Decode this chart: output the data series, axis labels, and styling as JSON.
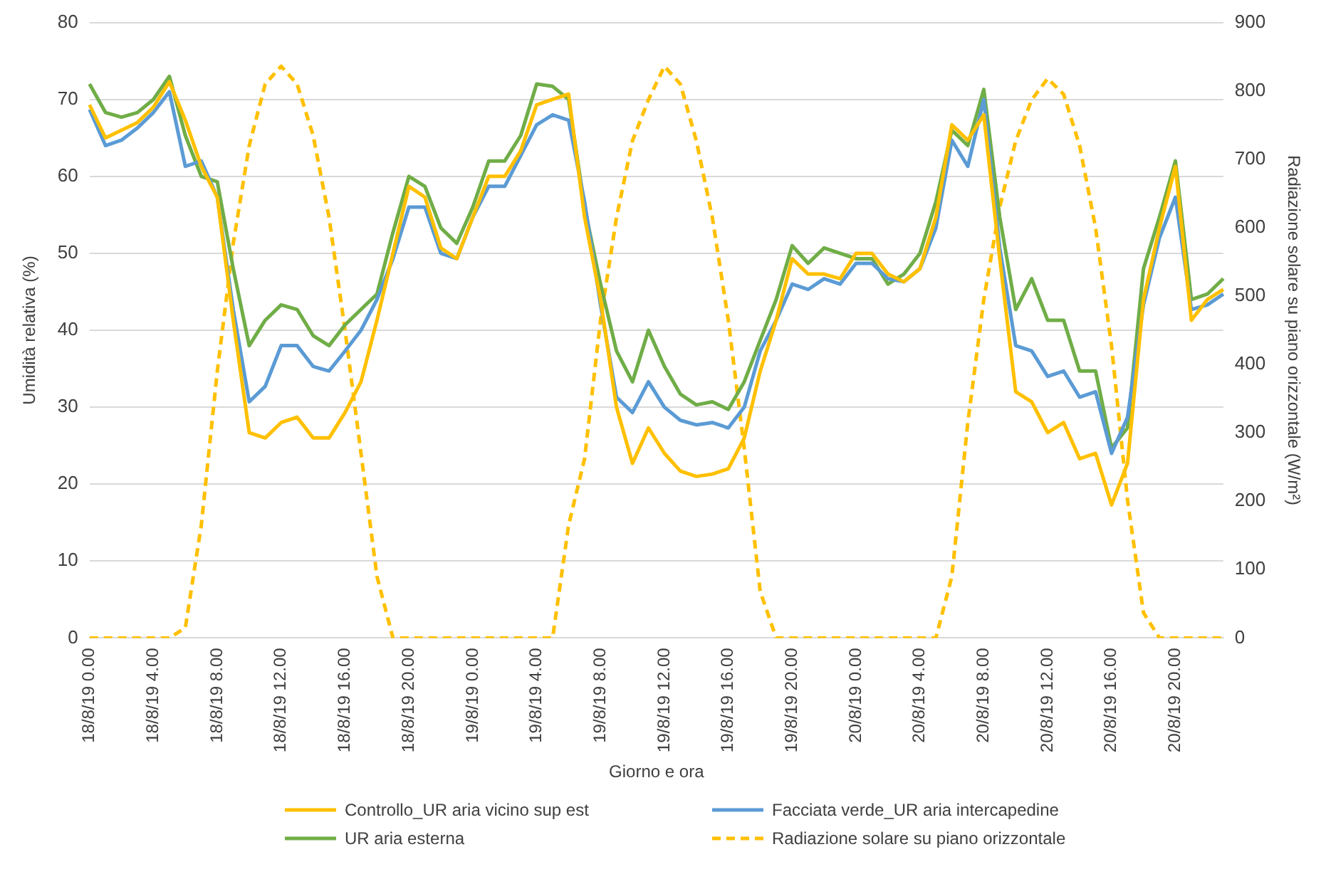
{
  "chart_data": {
    "type": "line",
    "xlabel": "Giorno e ora",
    "ylabel": "Umidità relativa (%)",
    "y2label": "Radiazione solare su piano orizzontale (W/m²)",
    "categories": [
      "18/8/19 0.00",
      null,
      null,
      null,
      "18/8/19 4.00",
      null,
      null,
      null,
      "18/8/19 8.00",
      null,
      null,
      null,
      "18/8/19 12.00",
      null,
      null,
      null,
      "18/8/19 16.00",
      null,
      null,
      null,
      "18/8/19 20.00",
      null,
      null,
      null,
      "19/8/19 0.00",
      null,
      null,
      null,
      "19/8/19 4.00",
      null,
      null,
      null,
      "19/8/19 8.00",
      null,
      null,
      null,
      "19/8/19 12.00",
      null,
      null,
      null,
      "19/8/19 16.00",
      null,
      null,
      null,
      "19/8/19 20.00",
      null,
      null,
      null,
      "20/8/19 0.00",
      null,
      null,
      null,
      "20/8/19 4.00",
      null,
      null,
      null,
      "20/8/19 8.00",
      null,
      null,
      null,
      "20/8/19 12.00",
      null,
      null,
      null,
      "20/8/19 16.00",
      null,
      null,
      null,
      "20/8/19 20.00",
      null,
      null,
      null
    ],
    "series": [
      {
        "name": "Controllo_UR aria vicino sup est",
        "color": "#ffc000",
        "values": [
          69.3,
          65,
          66,
          67,
          69,
          72.3,
          67.3,
          61.3,
          57.3,
          41.3,
          26.7,
          26,
          28,
          28.7,
          26,
          26,
          29.3,
          33.3,
          41.3,
          50,
          58.7,
          57.3,
          50.7,
          49.3,
          54.7,
          60,
          60,
          63.3,
          69.3,
          70,
          70.7,
          54.7,
          44,
          30,
          22.7,
          27.3,
          24,
          21.7,
          21,
          21.3,
          22,
          26,
          34.7,
          41.3,
          49.3,
          47.3,
          47.3,
          46.7,
          50,
          50,
          47.3,
          46.3,
          48,
          54.7,
          66.7,
          64.7,
          68,
          49.3,
          32,
          30.7,
          26.7,
          28,
          23.3,
          24,
          17.3,
          22.7,
          44,
          53.3,
          61.3,
          41.3,
          44,
          45.3
        ]
      },
      {
        "name": "Facciata verde_UR aria intercapedine",
        "color": "#5b9bd5",
        "values": [
          68.7,
          64,
          64.7,
          66.3,
          68.3,
          71,
          61.3,
          62,
          57.3,
          42.7,
          30.7,
          32.7,
          38,
          38,
          35.3,
          34.7,
          37.3,
          40,
          44,
          49.3,
          56,
          56,
          50,
          49.3,
          54.7,
          58.7,
          58.7,
          62.7,
          66.7,
          68,
          67.3,
          56.7,
          43.3,
          31.3,
          29.3,
          33.3,
          30,
          28.3,
          27.7,
          28,
          27.3,
          30,
          37.3,
          41.3,
          46,
          45.3,
          46.7,
          46,
          48.7,
          48.7,
          46.7,
          46.3,
          48,
          53.3,
          64.7,
          61.3,
          70,
          50.7,
          38,
          37.3,
          34,
          34.7,
          31.3,
          32,
          24,
          28.7,
          43.3,
          52,
          57.3,
          42.7,
          43.3,
          44.7
        ]
      },
      {
        "name": "UR aria esterna",
        "color": "#70ad47",
        "values": [
          72,
          68.3,
          67.7,
          68.3,
          70,
          73,
          65.3,
          60,
          59.3,
          48,
          38,
          41.3,
          43.3,
          42.7,
          39.3,
          38,
          40.7,
          42.7,
          44.7,
          52.7,
          60,
          58.7,
          53.3,
          51.3,
          56,
          62,
          62,
          65.3,
          72,
          71.7,
          70,
          56,
          46,
          37.3,
          33.3,
          40,
          35.3,
          31.7,
          30.3,
          30.7,
          29.7,
          33.3,
          38.7,
          44,
          51,
          48.7,
          50.7,
          50,
          49.3,
          49.3,
          46,
          47.3,
          50,
          56.7,
          66,
          64,
          71.3,
          54.7,
          42.7,
          46.7,
          41.3,
          41.3,
          34.7,
          34.7,
          24.7,
          27.3,
          48,
          54.7,
          62,
          44,
          44.7,
          46.7
        ]
      },
      {
        "name": "Radiazione solare su piano orizzontale",
        "color": "#ffc000",
        "axis": "y2",
        "line_style": "dashed",
        "values": [
          0,
          0,
          0,
          0,
          0,
          0,
          15,
          165,
          390,
          577,
          720,
          810,
          836,
          810,
          735,
          615,
          450,
          270,
          90,
          0,
          0,
          0,
          0,
          0,
          0,
          0,
          0,
          0,
          0,
          0,
          165,
          262,
          465,
          615,
          727,
          787,
          836,
          810,
          727,
          615,
          465,
          277,
          68,
          0,
          0,
          0,
          0,
          0,
          0,
          0,
          0,
          0,
          0,
          0,
          90,
          315,
          495,
          630,
          727,
          787,
          818,
          795,
          720,
          600,
          427,
          202,
          37,
          0,
          0,
          0,
          0,
          0
        ]
      }
    ],
    "ylim": [
      0,
      80
    ],
    "yticks": [
      0,
      10,
      20,
      30,
      40,
      50,
      60,
      70,
      80
    ],
    "y2lim": [
      0,
      900
    ],
    "y2ticks": [
      0,
      100,
      200,
      300,
      400,
      500,
      600,
      700,
      800,
      900
    ],
    "grid": "y",
    "legend": "bottom",
    "marker": "none",
    "line_style": "solid"
  }
}
